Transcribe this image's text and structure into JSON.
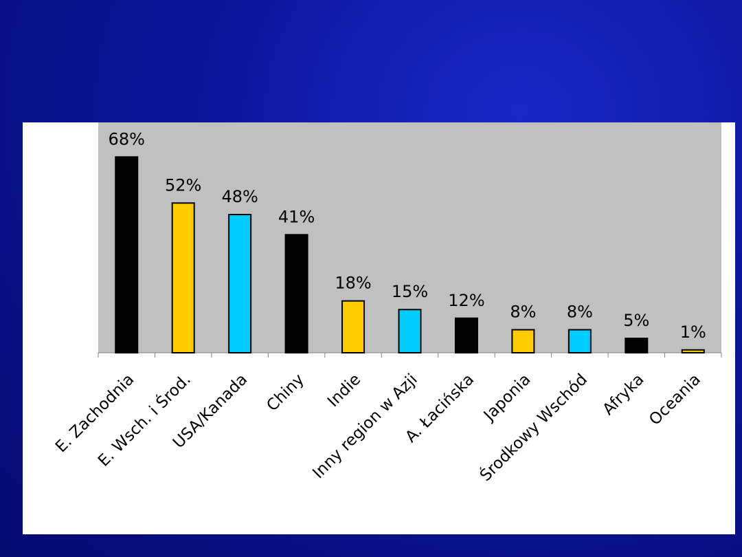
{
  "chart_data": {
    "type": "bar",
    "categories": [
      "E. Zachodnia",
      "E. Wsch. i Środ.",
      "USA/Kanada",
      "Chiny",
      "Indie",
      "Inny region w Azji",
      "A. Łacińska",
      "Japonia",
      "Środkowy Wschód",
      "Afryka",
      "Oceania"
    ],
    "values": [
      68,
      52,
      48,
      41,
      18,
      15,
      12,
      8,
      8,
      5,
      1
    ],
    "value_labels": [
      "68%",
      "52%",
      "48%",
      "41%",
      "18%",
      "15%",
      "12%",
      "8%",
      "8%",
      "5%",
      "1%"
    ],
    "colors": [
      "#000000",
      "#ffcc00",
      "#00ccff",
      "#000000",
      "#ffcc00",
      "#00ccff",
      "#000000",
      "#ffcc00",
      "#00ccff",
      "#000000",
      "#ffcc00"
    ],
    "ylim": [
      0,
      80
    ]
  }
}
